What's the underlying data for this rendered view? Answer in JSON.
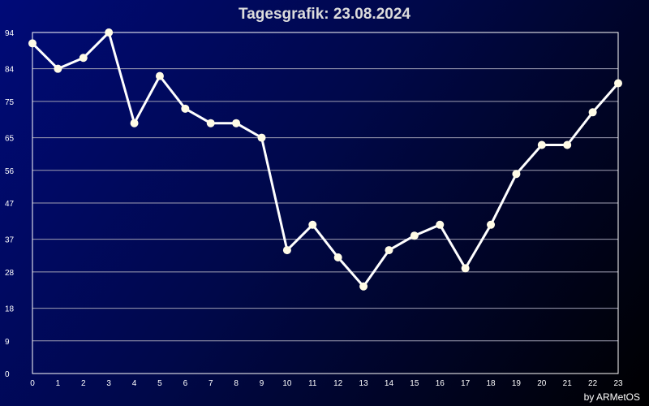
{
  "chart_data": {
    "type": "line",
    "title": "Tagesgrafik: 23.08.2024",
    "credit": "by ARMetOS",
    "xlabel": "",
    "ylabel": "",
    "x": [
      0,
      1,
      2,
      3,
      4,
      5,
      6,
      7,
      8,
      9,
      10,
      11,
      12,
      13,
      14,
      15,
      16,
      17,
      18,
      19,
      20,
      21,
      22,
      23
    ],
    "x_tick_labels": [
      "0",
      "1",
      "2",
      "3",
      "4",
      "5",
      "6",
      "7",
      "8",
      "9",
      "10",
      "11",
      "12",
      "13",
      "14",
      "15",
      "16",
      "17",
      "18",
      "19",
      "20",
      "21",
      "22",
      "23"
    ],
    "y_ticks": [
      0,
      9,
      18,
      28,
      37,
      47,
      56,
      65,
      75,
      84,
      94
    ],
    "y_tick_labels": [
      "0",
      "9",
      "18",
      "28",
      "37",
      "47",
      "56",
      "65",
      "75",
      "84",
      "94"
    ],
    "ylim": [
      0,
      94
    ],
    "grid": true,
    "series": [
      {
        "values": [
          91,
          84,
          87,
          94,
          69,
          82,
          73,
          69,
          69,
          65,
          34,
          41,
          32,
          24,
          34,
          38,
          41,
          29,
          41,
          55,
          63,
          63,
          72,
          80
        ]
      }
    ],
    "colors": {
      "line": "#ffffff",
      "marker": "#fffbe6",
      "grid": "#a0a0b4",
      "frame": "#ffffff"
    }
  }
}
